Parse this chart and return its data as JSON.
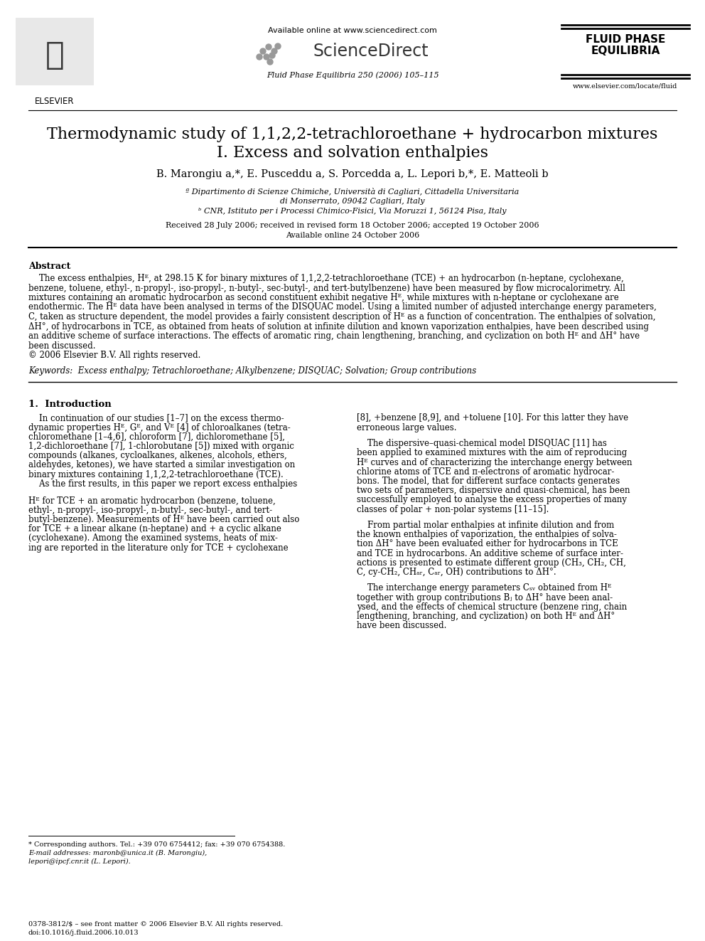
{
  "page_width": 9.92,
  "page_height": 13.23,
  "bg_color": "#ffffff",
  "header_available": "Available online at www.sciencedirect.com",
  "header_sciencedirect": "ScienceDirect",
  "header_journal": "Fluid Phase Equilibria 250 (2006) 105–115",
  "header_fluid_phase": "FLUID PHASE\nEQUILIBRIA",
  "header_website": "www.elsevier.com/locate/fluid",
  "elsevier_text": "ELSEVIER",
  "title_line1": "Thermodynamic study of 1,1,2,2-tetrachloroethane + hydrocarbon mixtures",
  "title_line2": "I. Excess and solvation enthalpies",
  "authors_main": "B. Marongiu",
  "authors_full": "B. Marongiu a,*, E. Pusceddu a, S. Porcedda a, L. Lepori b,*, E. Matteoli b",
  "affil_a1": "ª Dipartimento di Scienze Chimiche, Università di Cagliari, Cittadella Universitaria",
  "affil_a2": "di Monserrato, 09042 Cagliari, Italy",
  "affil_b": "ᵇ CNR, Istituto per i Processi Chimico-Fisici, Via Moruzzi 1, 56124 Pisa, Italy",
  "received_line1": "Received 28 July 2006; received in revised form 18 October 2006; accepted 19 October 2006",
  "received_line2": "Available online 24 October 2006",
  "abstract_head": "Abstract",
  "abstract_body_lines": [
    "    The excess enthalpies, Hᴱ, at 298.15 K for binary mixtures of 1,1,2,2-tetrachloroethane (TCE) + an hydrocarbon (n-heptane, cyclohexane,",
    "benzene, toluene, ethyl-, n-propyl-, iso-propyl-, n-butyl-, sec-butyl-, and tert-butylbenzene) have been measured by flow microcalorimetry. All",
    "mixtures containing an aromatic hydrocarbon as second constituent exhibit negative Hᴱ, while mixtures with n-heptane or cyclohexane are",
    "endothermic. The Hᴱ data have been analysed in terms of the DISQUAC model. Using a limited number of adjusted interchange energy parameters,",
    "C, taken as structure dependent, the model provides a fairly consistent description of Hᴱ as a function of concentration. The enthalpies of solvation,",
    "ΔH°, of hydrocarbons in TCE, as obtained from heats of solution at infinite dilution and known vaporization enthalpies, have been described using",
    "an additive scheme of surface interactions. The effects of aromatic ring, chain lengthening, branching, and cyclization on both Hᴱ and ΔH° have",
    "been discussed.",
    "© 2006 Elsevier B.V. All rights reserved."
  ],
  "keywords_line": "Keywords:  Excess enthalpy; Tetrachloroethane; Alkylbenzene; DISQUAC; Solvation; Group contributions",
  "sec1_title": "1.  Introduction",
  "col1_lines": [
    "    In continuation of our studies [1–7] on the excess thermo-",
    "dynamic properties Hᴱ, Gᴱ, and Vᴱ [4] of chloroalkanes (tetra-",
    "chloromethane [1–4,6], chloroform [7], dichloromethane [5],",
    "1,2-dichloroethane [7], 1-chlorobutane [5]) mixed with organic",
    "compounds (alkanes, cycloalkanes, alkenes, alcohols, ethers,",
    "aldehydes, ketones), we have started a similar investigation on",
    "binary mixtures containing 1,1,2,2-tetrachloroethane (TCE).",
    "    As the first results, in this paper we report excess enthalpies",
    "Hᴱ for TCE + an aromatic hydrocarbon (benzene, toluene,",
    "ethyl-, n-propyl-, iso-propyl-, n-butyl-, sec-butyl-, and tert-",
    "butyl-benzene). Measurements of Hᴱ have been carried out also",
    "for TCE + a linear alkane (n-heptane) and + a cyclic alkane",
    "(cyclohexane). Among the examined systems, heats of mix-",
    "ing are reported in the literature only for TCE + cyclohexane"
  ],
  "col2_lines": [
    "[8], +benzene [8,9], and +toluene [10]. For this latter they have",
    "erroneous large values.",
    "    The dispersive–quasi-chemical model DISQUAC [11] has",
    "been applied to examined mixtures with the aim of reproducing",
    "Hᴱ curves and of characterizing the interchange energy between",
    "chlorine atoms of TCE and π-electrons of aromatic hydrocar-",
    "bons. The model, that for different surface contacts generates",
    "two sets of parameters, dispersive and quasi-chemical, has been",
    "successfully employed to analyse the excess properties of many",
    "classes of polar + non-polar systems [11–15].",
    "    From partial molar enthalpies at infinite dilution and from",
    "the known enthalpies of vaporization, the enthalpies of solva-",
    "tion ΔH° have been evaluated either for hydrocarbons in TCE",
    "and TCE in hydrocarbons. An additive scheme of surface inter-",
    "actions is presented to estimate different group (CH₃, CH₂, CH,",
    "C, cy-CH₂, CHₐᵣ, Cₐᵣ, OH) contributions to ΔH°.",
    "    The interchange energy parameters Cₛᵥ obtained from Hᴱ",
    "together with group contributions Bⱼ to ΔH° have been anal-",
    "ysed, and the effects of chemical structure (benzene ring, chain",
    "lengthening, branching, and cyclization) on both Hᴱ and ΔH°",
    "have been discussed."
  ],
  "fn_star": "* Corresponding authors. Tel.: +39 070 6754412; fax: +39 070 6754388.",
  "fn_email1": "E-mail addresses: maronb@unica.it (B. Marongiu),",
  "fn_email2": "lepori@ipcf.cnr.it (L. Lepori).",
  "issn_line": "0378-3812/$ – see front matter © 2006 Elsevier B.V. All rights reserved.",
  "doi_line": "doi:10.1016/j.fluid.2006.10.013"
}
